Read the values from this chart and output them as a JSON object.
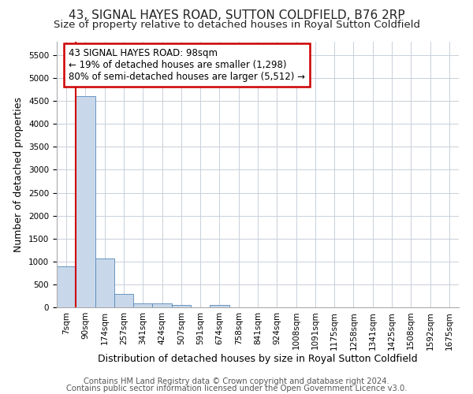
{
  "title": "43, SIGNAL HAYES ROAD, SUTTON COLDFIELD, B76 2RP",
  "subtitle": "Size of property relative to detached houses in Royal Sutton Coldfield",
  "xlabel": "Distribution of detached houses by size in Royal Sutton Coldfield",
  "ylabel": "Number of detached properties",
  "footnote1": "Contains HM Land Registry data © Crown copyright and database right 2024.",
  "footnote2": "Contains public sector information licensed under the Open Government Licence v3.0.",
  "annotation_line1": "43 SIGNAL HAYES ROAD: 98sqm",
  "annotation_line2": "← 19% of detached houses are smaller (1,298)",
  "annotation_line3": "80% of semi-detached houses are larger (5,512) →",
  "bar_color": "#c8d8ea",
  "bar_edge_color": "#5588bb",
  "property_line_color": "#cc0000",
  "annotation_box_color": "#cc0000",
  "categories": [
    "7sqm",
    "90sqm",
    "174sqm",
    "257sqm",
    "341sqm",
    "424sqm",
    "507sqm",
    "591sqm",
    "674sqm",
    "758sqm",
    "841sqm",
    "924sqm",
    "1008sqm",
    "1091sqm",
    "1175sqm",
    "1258sqm",
    "1341sqm",
    "1425sqm",
    "1508sqm",
    "1592sqm",
    "1675sqm"
  ],
  "values": [
    900,
    4600,
    1060,
    300,
    90,
    80,
    60,
    0,
    55,
    0,
    0,
    0,
    0,
    0,
    0,
    0,
    0,
    0,
    0,
    0,
    0
  ],
  "ylim": [
    0,
    5800
  ],
  "property_line_x": 1,
  "background_color": "#ffffff",
  "grid_color": "#c8d0da",
  "title_fontsize": 11,
  "subtitle_fontsize": 9.5,
  "axis_label_fontsize": 9,
  "tick_fontsize": 7.5,
  "footnote_fontsize": 7.2,
  "annotation_fontsize": 8.5
}
